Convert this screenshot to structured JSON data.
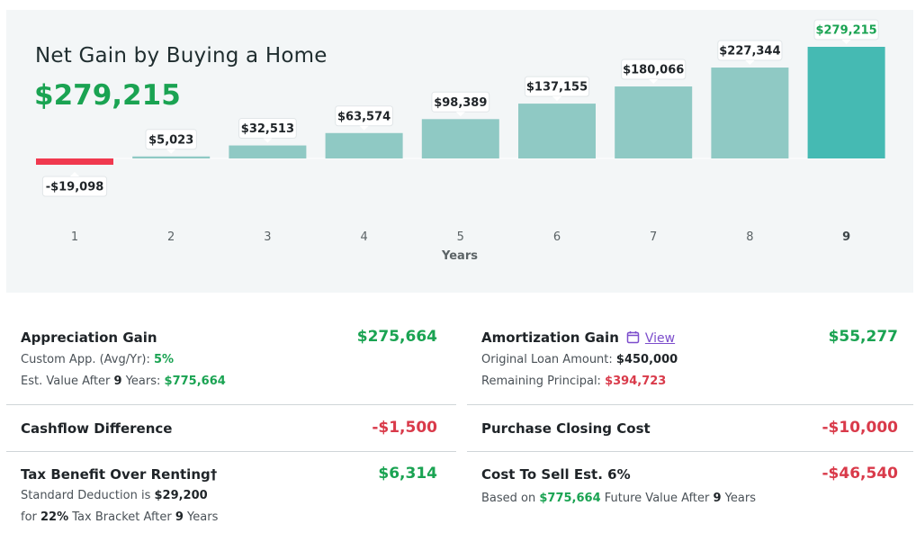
{
  "header": {
    "title": "Net Gain by Buying a Home",
    "total": "$279,215"
  },
  "chart_data": {
    "type": "bar",
    "xlabel": "Years",
    "categories": [
      "1",
      "2",
      "3",
      "4",
      "5",
      "6",
      "7",
      "8",
      "9"
    ],
    "values": [
      -19098,
      5023,
      32513,
      63574,
      98389,
      137155,
      180066,
      227344,
      279215
    ],
    "value_labels": [
      "-$19,098",
      "$5,023",
      "$32,513",
      "$63,574",
      "$98,389",
      "$137,155",
      "$180,066",
      "$227,344",
      "$279,215"
    ],
    "highlight_index": 8,
    "colors": {
      "positive": "#8fc9c4",
      "negative": "#f0394f",
      "highlight": "#45bab3",
      "highlight_label": "#1aa352"
    }
  },
  "summary": {
    "appreciation": {
      "title": "Appreciation Gain",
      "value": "$275,664",
      "custom_label": "Custom App. (Avg/Yr): ",
      "custom_value": "5%",
      "est_label_pre": "Est. Value After ",
      "est_years": "9",
      "est_label_post": " Years: ",
      "est_value": "$775,664"
    },
    "amortization": {
      "title": "Amortization Gain",
      "icon": "calendar-icon",
      "link": "View",
      "value": "$55,277",
      "loan_label": "Original Loan Amount: ",
      "loan_value": "$450,000",
      "remaining_label": "Remaining Principal: ",
      "remaining_value": "$394,723"
    },
    "cashflow": {
      "title": "Cashflow Difference",
      "value": "-$1,500"
    },
    "closing": {
      "title": "Purchase Closing Cost",
      "value": "-$10,000"
    },
    "tax": {
      "title": "Tax Benefit Over Renting†",
      "value": "$6,314",
      "line1_pre": "Standard Deduction is ",
      "line1_value": "$29,200",
      "line2_pre": "for ",
      "line2_pct": "22%",
      "line2_mid": " Tax Bracket After ",
      "line2_years": "9",
      "line2_post": " Years"
    },
    "sell": {
      "title": "Cost To Sell Est. 6%",
      "value": "-$46,540",
      "line_pre": "Based on ",
      "line_value": "$775,664",
      "line_mid": " Future Value After ",
      "line_years": "9",
      "line_post": " Years"
    }
  }
}
